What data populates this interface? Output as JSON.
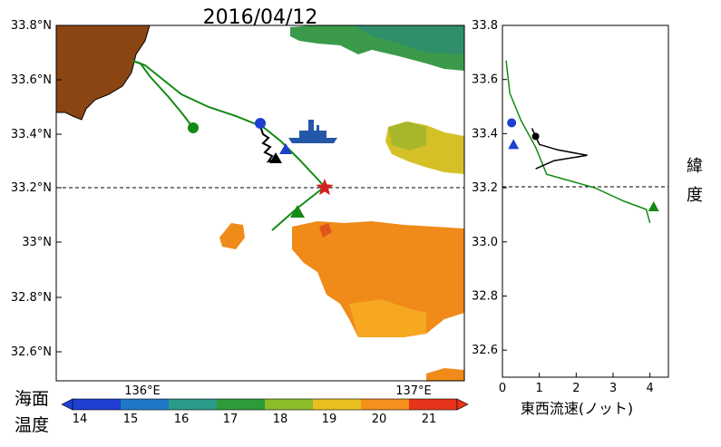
{
  "map": {
    "title": "2016/04/12",
    "lat_ticks": [
      "33.8°N",
      "33.6°N",
      "33.4°N",
      "33.2°N",
      "33°N",
      "32.8°N",
      "32.6°N"
    ],
    "lon_ticks": [
      "136°E",
      "137°E"
    ],
    "colorbar": {
      "label_line1": "海面",
      "label_line2": "温度",
      "ticks": [
        "14",
        "15",
        "16",
        "17",
        "18",
        "19",
        "20",
        "21"
      ],
      "colors": [
        "#1f3fd0",
        "#1f78c8",
        "#2a9a8a",
        "#2e9a3a",
        "#8cbc2a",
        "#e8c020",
        "#f5901c",
        "#e6331a"
      ]
    },
    "colors": {
      "land": "#8b4513",
      "ship_track": "#138a13",
      "ship": "#2457a8",
      "reference": "#d42020"
    }
  },
  "side_panel": {
    "xlabel": "東西流速(ノット)",
    "ylabel_line1": "緯",
    "ylabel_line2": "度",
    "y_ticks": [
      "33.8",
      "33.6",
      "33.4",
      "33.2",
      "33.0",
      "32.8",
      "32.6"
    ],
    "x_ticks": [
      "0",
      "1",
      "2",
      "3",
      "4"
    ]
  },
  "chart_data": {
    "type": "line",
    "title": "",
    "xlabel": "東西流速(ノット)",
    "ylabel": "緯度",
    "xlim": [
      0,
      4.5
    ],
    "ylim": [
      32.5,
      33.8
    ],
    "reference_latitude": 33.21,
    "series": [
      {
        "color": "#138a13",
        "points": [
          [
            0.1,
            33.67
          ],
          [
            0.2,
            33.55
          ],
          [
            0.5,
            33.45
          ],
          [
            0.9,
            33.35
          ],
          [
            1.2,
            33.25
          ],
          [
            2.5,
            33.2
          ],
          [
            3.3,
            33.15
          ],
          [
            3.9,
            33.12
          ],
          [
            4.0,
            33.07
          ]
        ]
      },
      {
        "color": "#000000",
        "points": [
          [
            0.8,
            33.42
          ],
          [
            1.0,
            33.36
          ],
          [
            1.5,
            33.34
          ],
          [
            2.3,
            33.32
          ],
          [
            1.4,
            33.3
          ],
          [
            0.9,
            33.27
          ]
        ]
      }
    ]
  }
}
